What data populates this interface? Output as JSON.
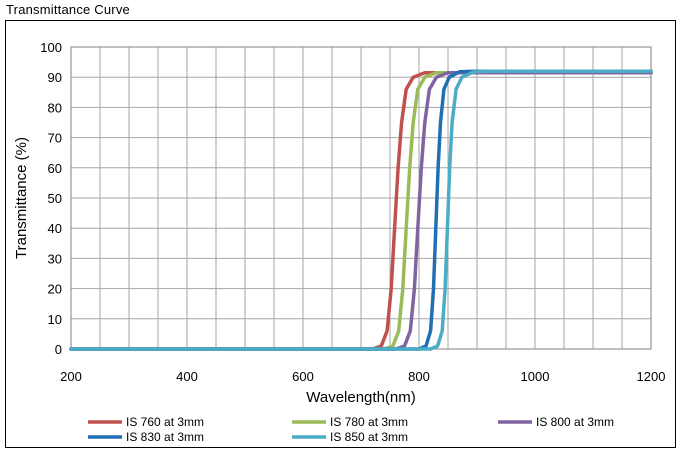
{
  "page": {
    "title": "Transmittance Curve"
  },
  "chart_data": {
    "type": "line",
    "title": "",
    "xlabel": "Wavelength(nm)",
    "ylabel": "Transmittance (%)",
    "xlim": [
      200,
      1200
    ],
    "ylim": [
      0,
      100
    ],
    "xticks": [
      200,
      400,
      600,
      800,
      1000,
      1200
    ],
    "yticks": [
      0,
      10,
      20,
      30,
      40,
      50,
      60,
      70,
      80,
      90,
      100
    ],
    "x_minor_step": 50,
    "grid": true,
    "legend_position": "bottom",
    "series": [
      {
        "name": "IS 760 at 3mm",
        "color": "#c0504d",
        "points": [
          [
            200,
            0
          ],
          [
            720,
            0
          ],
          [
            735,
            1
          ],
          [
            745,
            6
          ],
          [
            752,
            20
          ],
          [
            758,
            40
          ],
          [
            764,
            60
          ],
          [
            770,
            75
          ],
          [
            778,
            86
          ],
          [
            790,
            90
          ],
          [
            810,
            91.5
          ],
          [
            850,
            91.5
          ],
          [
            1200,
            91.5
          ]
        ]
      },
      {
        "name": "IS 780 at 3mm",
        "color": "#9bbb59",
        "points": [
          [
            200,
            0
          ],
          [
            740,
            0
          ],
          [
            755,
            1
          ],
          [
            765,
            6
          ],
          [
            772,
            20
          ],
          [
            778,
            40
          ],
          [
            784,
            60
          ],
          [
            790,
            75
          ],
          [
            798,
            86
          ],
          [
            810,
            90
          ],
          [
            830,
            91.5
          ],
          [
            860,
            91.5
          ],
          [
            1200,
            91.5
          ]
        ]
      },
      {
        "name": "IS 800 at 3mm",
        "color": "#8064a2",
        "points": [
          [
            200,
            0
          ],
          [
            760,
            0
          ],
          [
            775,
            1
          ],
          [
            785,
            6
          ],
          [
            792,
            20
          ],
          [
            798,
            40
          ],
          [
            804,
            60
          ],
          [
            810,
            75
          ],
          [
            818,
            86
          ],
          [
            830,
            90
          ],
          [
            850,
            91.5
          ],
          [
            880,
            91.5
          ],
          [
            1200,
            91.5
          ]
        ]
      },
      {
        "name": "IS 830 at 3mm",
        "color": "#1f6fb2",
        "points": [
          [
            200,
            0
          ],
          [
            800,
            0
          ],
          [
            812,
            1
          ],
          [
            820,
            6
          ],
          [
            825,
            20
          ],
          [
            829,
            40
          ],
          [
            833,
            60
          ],
          [
            837,
            75
          ],
          [
            843,
            86
          ],
          [
            852,
            90
          ],
          [
            870,
            91.8
          ],
          [
            900,
            92
          ],
          [
            1200,
            92
          ]
        ]
      },
      {
        "name": "IS 850 at 3mm",
        "color": "#4bacc6",
        "points": [
          [
            200,
            0
          ],
          [
            820,
            0
          ],
          [
            832,
            1
          ],
          [
            840,
            6
          ],
          [
            845,
            20
          ],
          [
            849,
            40
          ],
          [
            853,
            60
          ],
          [
            857,
            75
          ],
          [
            864,
            86
          ],
          [
            874,
            90
          ],
          [
            895,
            91.8
          ],
          [
            920,
            92
          ],
          [
            1200,
            92
          ]
        ]
      }
    ]
  }
}
